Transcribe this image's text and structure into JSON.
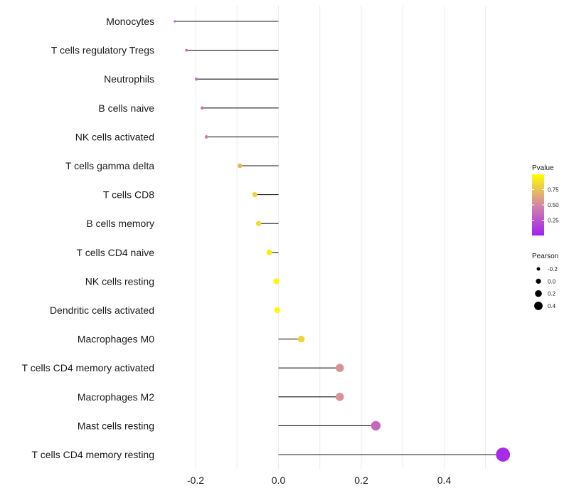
{
  "chart_data": {
    "type": "lollipop",
    "title": "",
    "xlabel": "",
    "ylabel": "",
    "xlim": [
      -0.28,
      0.56
    ],
    "x_ticks": [
      -0.2,
      0.0,
      0.2,
      0.4
    ],
    "x_tick_labels": [
      "-0.2",
      "0.0",
      "0.2",
      "0.4"
    ],
    "grid": true,
    "categories": [
      "Monocytes",
      "T cells regulatory  Tregs",
      "Neutrophils",
      "B cells naive",
      "NK cells activated",
      "T cells gamma delta",
      "T cells CD8",
      "B cells memory",
      "T cells CD4 naive",
      "NK cells resting",
      "Dendritic cells activated",
      "Macrophages M0",
      "T cells CD4 memory activated",
      "Macrophages M2",
      "Mast cells resting",
      "T cells CD4 memory resting"
    ],
    "pearson": [
      -0.25,
      -0.222,
      -0.198,
      -0.184,
      -0.174,
      -0.093,
      -0.057,
      -0.048,
      -0.022,
      -0.005,
      -0.003,
      0.055,
      0.148,
      0.148,
      0.235,
      0.542
    ],
    "pvalue": [
      0.3,
      0.35,
      0.38,
      0.4,
      0.45,
      0.7,
      0.82,
      0.86,
      0.92,
      0.97,
      0.98,
      0.82,
      0.55,
      0.55,
      0.35,
      0.06
    ],
    "legend_pvalue": {
      "title": "Pvalue",
      "ticks": [
        0.25,
        0.5,
        0.75
      ],
      "tick_labels": [
        "0.25",
        "0.50",
        "0.75"
      ],
      "range": [
        0.0,
        1.0
      ],
      "color_low": "#a020f0",
      "color_mid": "#d487a8",
      "color_high": "#ffff00",
      "position": "right"
    },
    "legend_pearson": {
      "title": "Pearson",
      "values": [
        -0.2,
        0.0,
        0.2,
        0.4
      ],
      "labels": [
        "-0.2",
        "0.0",
        "0.2",
        "0.4"
      ],
      "position": "right"
    }
  }
}
